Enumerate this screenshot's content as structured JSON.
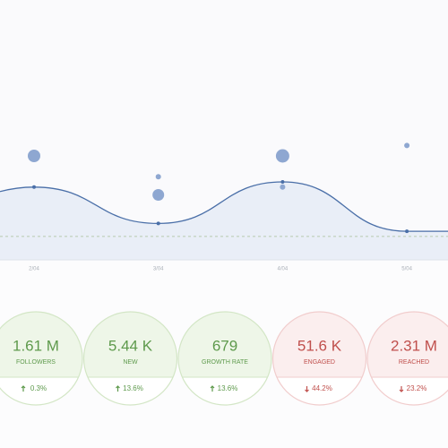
{
  "chart_data": {
    "type": "line",
    "categories": [
      "2/04",
      "3/04",
      "4/04",
      "5/04"
    ],
    "values": [
      28,
      14,
      30,
      11
    ],
    "color": "#4a6fa8",
    "area_color": "#e9eef7",
    "ylim": [
      0,
      100
    ],
    "reference_line": 9,
    "bubbles": {
      "color": "#8ea7d1",
      "x": [
        "2/04",
        "3/04",
        "3/04",
        "4/04",
        "4/04",
        "5/04"
      ],
      "values": [
        40,
        32,
        25,
        40,
        28,
        44
      ],
      "sizes": [
        7,
        3,
        6.5,
        7.5,
        3,
        3
      ]
    }
  },
  "stats": [
    {
      "value": "1.61 M",
      "label": "FOLLOWERS",
      "change": "0.3%",
      "trend": "up"
    },
    {
      "value": "5.44 K",
      "label": "NEW",
      "change": "13.6%",
      "trend": "up"
    },
    {
      "value": "679",
      "label": "GROWTH RATE",
      "change": "13.6%",
      "trend": "up"
    },
    {
      "value": "51.6 K",
      "label": "ENGAGED",
      "change": "44.2%",
      "trend": "down"
    },
    {
      "value": "2.31 M",
      "label": "REACHED",
      "change": "23.2%",
      "trend": "down"
    }
  ]
}
